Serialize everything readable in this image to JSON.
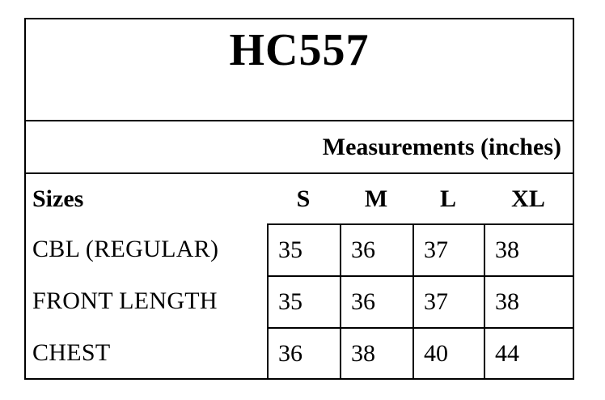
{
  "size_chart": {
    "title": "HC557",
    "measurements_header": "Measurements (inches)",
    "sizes_label": "Sizes",
    "size_columns": [
      "S",
      "M",
      "L",
      "XL"
    ],
    "rows": [
      {
        "label": "CBL (REGULAR)",
        "values": [
          "35",
          "36",
          "37",
          "38"
        ]
      },
      {
        "label": "FRONT LENGTH",
        "values": [
          "35",
          "36",
          "37",
          "38"
        ]
      },
      {
        "label": "CHEST",
        "values": [
          "36",
          "38",
          "40",
          "44"
        ]
      }
    ],
    "colors": {
      "border": "#000000",
      "text": "#000000",
      "background": "#ffffff"
    }
  }
}
